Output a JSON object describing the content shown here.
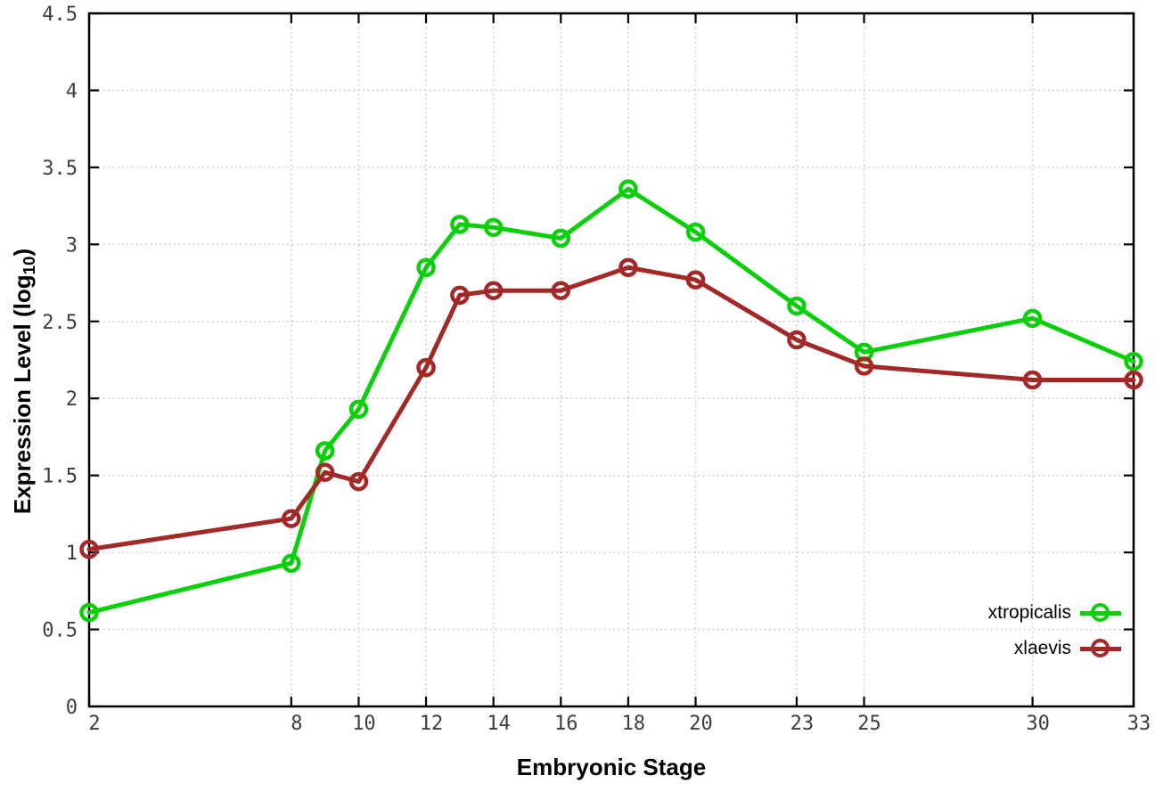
{
  "figure": {
    "background": "#ffffff",
    "border_color": "#000000",
    "grid_color": "#bdbdbd",
    "tick_label_color": "#3d3d3d"
  },
  "chart_data": {
    "type": "line",
    "title": "",
    "xlabel": "Embryonic Stage",
    "ylabel": "Expression Level (log10)",
    "ylabel_parts": {
      "prefix": "Expression Level (log",
      "sub": "10",
      "suffix": ")"
    },
    "xlim": [
      2,
      33
    ],
    "ylim": [
      0,
      4.5
    ],
    "xticks": [
      2,
      8,
      10,
      12,
      14,
      16,
      18,
      20,
      23,
      25,
      30,
      33
    ],
    "yticks": [
      0,
      0.5,
      1,
      1.5,
      2,
      2.5,
      3,
      3.5,
      4,
      4.5
    ],
    "grid": true,
    "legend_position": "inside-right-bottom",
    "marker": "open-circle",
    "x": [
      2,
      8,
      9,
      10,
      12,
      13,
      14,
      16,
      18,
      20,
      23,
      25,
      30,
      33
    ],
    "series": [
      {
        "name": "xtropicalis",
        "color": "#0ccf0c",
        "values": [
          0.61,
          0.93,
          1.66,
          1.93,
          2.85,
          3.13,
          3.11,
          3.04,
          3.36,
          3.08,
          2.6,
          2.3,
          2.52,
          2.24
        ]
      },
      {
        "name": "xlaevis",
        "color": "#a32828",
        "values": [
          1.02,
          1.22,
          1.52,
          1.46,
          2.2,
          2.67,
          2.7,
          2.7,
          2.85,
          2.77,
          2.38,
          2.21,
          2.12,
          2.12
        ]
      }
    ]
  }
}
